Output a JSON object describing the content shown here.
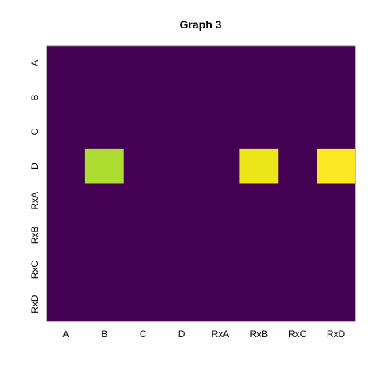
{
  "chart_data": {
    "type": "heatmap",
    "title": "Graph 3",
    "xlabel": "",
    "ylabel": "",
    "x_categories": [
      "A",
      "B",
      "C",
      "D",
      "RxA",
      "RxB",
      "RxC",
      "RxD"
    ],
    "y_categories": [
      "A",
      "B",
      "C",
      "D",
      "RxA",
      "RxB",
      "RxC",
      "RxD"
    ],
    "values": [
      [
        0,
        0,
        0,
        0,
        0,
        0,
        0,
        0
      ],
      [
        0,
        0,
        0,
        0,
        0,
        0,
        0,
        0
      ],
      [
        0,
        0,
        0,
        0,
        0,
        0,
        0,
        0
      ],
      [
        0,
        0.8,
        0,
        0,
        0,
        0.95,
        0,
        1
      ],
      [
        0,
        0,
        0,
        0,
        0,
        0,
        0,
        0
      ],
      [
        0,
        0,
        0,
        0,
        0,
        0,
        0,
        0
      ],
      [
        0,
        0,
        0,
        0,
        0,
        0,
        0,
        0
      ],
      [
        0,
        0,
        0,
        0,
        0,
        0,
        0,
        0
      ]
    ],
    "value_range": [
      0,
      1
    ],
    "colormap": "viridis",
    "colors": {
      "low": "#440154",
      "high": "#FDE725",
      "border": "#777777"
    },
    "grid": false,
    "legend": "none"
  }
}
